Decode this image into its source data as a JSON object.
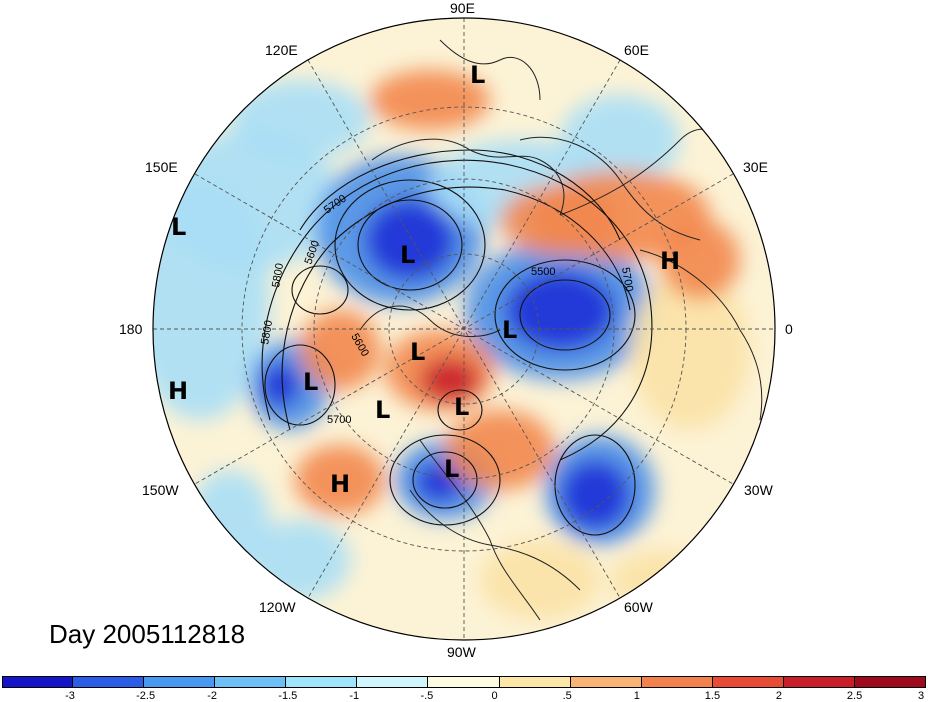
{
  "title": "Day 2005112818",
  "longitude_labels": {
    "e90": "90E",
    "e120": "120E",
    "e60": "60E",
    "e150": "150E",
    "e30": "30E",
    "w180": "180",
    "zero": "0",
    "w150": "150W",
    "w30": "30W",
    "w120": "120W",
    "w60": "60W",
    "w90": "90W"
  },
  "pressure_systems": {
    "low_siberia_n": "L",
    "low_pacific_w": "L",
    "low_east_asia": "L",
    "low_atlantic_n": "L",
    "low_pole": "L",
    "low_alaska": "L",
    "low_canada_w": "L",
    "low_canada_e": "L",
    "low_us": "L",
    "high_dateline": "H",
    "high_europe": "H",
    "high_pacific_ne": "H"
  },
  "contour_labels": {
    "c5700_a": "5700",
    "c5600_a": "5600",
    "c5800_a": "5800",
    "c5500": "5500",
    "c5700_b": "5700",
    "c5800_b": "5800",
    "c5600_b": "5600",
    "c5700_c": "5700"
  },
  "colorbar": {
    "colors": [
      "#1414c8",
      "#2a5ce6",
      "#4898f0",
      "#6cc0f6",
      "#9ee4fa",
      "#cff6fc",
      "#fdfbe0",
      "#fbe6a8",
      "#f8b475",
      "#f2814e",
      "#e84a36",
      "#c81e2a",
      "#9e0a1c"
    ],
    "ticks": [
      "-3",
      "-2.5",
      "-2",
      "-1.5",
      "-1",
      "-.5",
      "0",
      ".5",
      "1",
      "1.5",
      "2",
      "2.5",
      "3"
    ]
  },
  "anomaly_colors": {
    "strong_neg": "#1c2fd6",
    "neg": "#4a8fe8",
    "weak_neg": "#a8def6",
    "neutral": "#fdfbe6",
    "weak_pos": "#fbe2a6",
    "pos": "#f2874e",
    "strong_pos": "#c81e2a"
  }
}
